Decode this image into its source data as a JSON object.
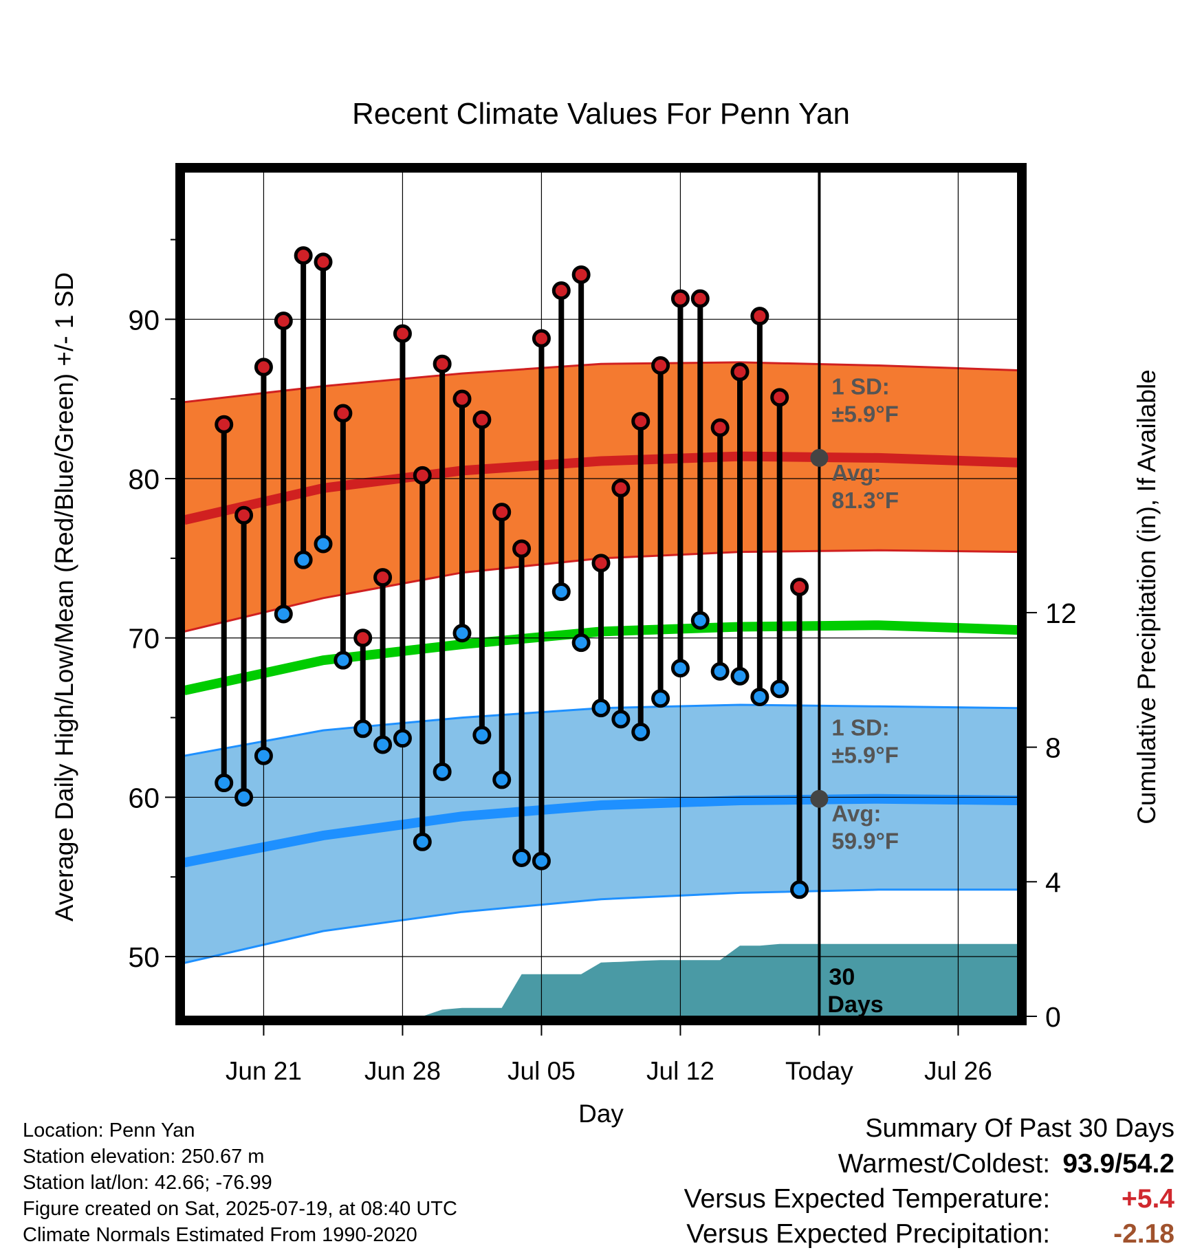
{
  "chart_data": {
    "type": "line",
    "title": "Recent Climate Values For Penn Yan",
    "xlabel": "Day",
    "ylabel": "Average Daily High/Low/Mean (Red/Blue/Green) +/- 1 SD",
    "y2label": "Cumulative Precipitation (in), If Available",
    "ylim": [
      46.25,
      99.25
    ],
    "y2lim": [
      0,
      25.1
    ],
    "yticks": [
      50,
      60,
      70,
      80,
      90
    ],
    "y2ticks": [
      0,
      4,
      8,
      12
    ],
    "xlim": [
      "2025-06-17",
      "2025-07-29"
    ],
    "xticks": [
      {
        "date": "2025-06-21",
        "label": "Jun 21"
      },
      {
        "date": "2025-06-28",
        "label": "Jun 28"
      },
      {
        "date": "2025-07-05",
        "label": "Jul 05"
      },
      {
        "date": "2025-07-12",
        "label": "Jul 12"
      },
      {
        "date": "2025-07-19",
        "label": "Today"
      },
      {
        "date": "2025-07-26",
        "label": "Jul 26"
      }
    ],
    "grid": true,
    "today": "2025-07-19",
    "days_label_line1": "30",
    "days_label_line2": "Days",
    "daily": {
      "dates": [
        "2025-06-19",
        "2025-06-20",
        "2025-06-21",
        "2025-06-22",
        "2025-06-23",
        "2025-06-24",
        "2025-06-25",
        "2025-06-26",
        "2025-06-27",
        "2025-06-28",
        "2025-06-29",
        "2025-06-30",
        "2025-07-01",
        "2025-07-02",
        "2025-07-03",
        "2025-07-04",
        "2025-07-05",
        "2025-07-06",
        "2025-07-07",
        "2025-07-08",
        "2025-07-09",
        "2025-07-10",
        "2025-07-11",
        "2025-07-12",
        "2025-07-13",
        "2025-07-14",
        "2025-07-15",
        "2025-07-16",
        "2025-07-17",
        "2025-07-18"
      ],
      "highs": [
        83.4,
        77.7,
        87.0,
        89.9,
        94.0,
        93.6,
        84.1,
        70.0,
        73.8,
        89.1,
        80.2,
        87.2,
        85.0,
        83.7,
        77.9,
        75.6,
        88.8,
        91.8,
        92.8,
        74.7,
        79.4,
        83.6,
        87.1,
        91.3,
        91.3,
        83.2,
        86.7,
        90.2,
        85.1,
        73.2
      ],
      "lows": [
        60.9,
        60.0,
        62.6,
        71.5,
        74.9,
        75.9,
        68.6,
        64.3,
        63.3,
        63.7,
        57.2,
        61.6,
        70.3,
        63.9,
        61.1,
        56.2,
        56.0,
        72.9,
        69.7,
        65.6,
        64.9,
        64.1,
        66.2,
        68.1,
        71.1,
        67.9,
        67.6,
        66.3,
        66.8,
        54.2
      ]
    },
    "normals": {
      "dates": [
        "2025-06-17",
        "2025-06-24",
        "2025-07-01",
        "2025-07-08",
        "2025-07-15",
        "2025-07-22",
        "2025-07-29"
      ],
      "high_avg": [
        77.4,
        79.4,
        80.5,
        81.1,
        81.4,
        81.3,
        81.0
      ],
      "high_upper": [
        84.8,
        85.8,
        86.6,
        87.2,
        87.3,
        87.1,
        86.8
      ],
      "high_lower": [
        70.4,
        72.5,
        74.1,
        75.0,
        75.4,
        75.5,
        75.4
      ],
      "mean_avg": [
        66.7,
        68.6,
        69.6,
        70.4,
        70.7,
        70.8,
        70.5
      ],
      "low_avg": [
        55.9,
        57.6,
        58.8,
        59.5,
        59.8,
        59.9,
        59.8
      ],
      "low_upper": [
        62.6,
        64.2,
        65.0,
        65.6,
        65.8,
        65.7,
        65.6
      ],
      "low_lower": [
        49.6,
        51.6,
        52.8,
        53.6,
        54.0,
        54.2,
        54.2
      ]
    },
    "precip": {
      "dates": [
        "2025-06-17",
        "2025-06-26",
        "2025-06-27",
        "2025-06-28",
        "2025-06-29",
        "2025-06-30",
        "2025-07-01",
        "2025-07-02",
        "2025-07-03",
        "2025-07-04",
        "2025-07-05",
        "2025-07-06",
        "2025-07-07",
        "2025-07-08",
        "2025-07-09",
        "2025-07-10",
        "2025-07-11",
        "2025-07-12",
        "2025-07-13",
        "2025-07-14",
        "2025-07-15",
        "2025-07-16",
        "2025-07-17",
        "2025-07-18",
        "2025-07-19",
        "2025-07-29"
      ],
      "values": [
        0.0,
        0.0,
        0.0,
        0.0,
        0.0,
        0.2,
        0.25,
        0.25,
        0.25,
        1.25,
        1.25,
        1.25,
        1.25,
        1.6,
        1.62,
        1.65,
        1.67,
        1.67,
        1.67,
        1.67,
        2.1,
        2.1,
        2.15,
        2.15,
        2.15,
        2.15
      ]
    },
    "annotations": [
      {
        "series": "high",
        "sd_label": "1 SD:",
        "sd_value": "±5.9°F",
        "avg_label": "Avg:",
        "avg_value": "81.3°F",
        "today_avg": 81.3
      },
      {
        "series": "low",
        "sd_label": "1 SD:",
        "sd_value": "±5.9°F",
        "avg_label": "Avg:",
        "avg_value": "59.9°F",
        "today_avg": 59.9
      }
    ],
    "colors": {
      "high_band": "#f47a30",
      "high_line": "#d02020",
      "high_dot": "#cf2027",
      "low_band": "#85c1e9",
      "low_line": "#1e90ff",
      "low_dot": "#2196f3",
      "mean_line": "#00cc00",
      "precip": "#4a9aa5",
      "annotation": "#555555",
      "today_marker": "#444444"
    }
  },
  "info": {
    "location": "Location: Penn Yan",
    "elevation": "Station elevation: 250.67 m",
    "latlon": "Station lat/lon: 42.66; -76.99",
    "created": "Figure created on Sat, 2025-07-19, at 08:40 UTC",
    "normals": "Climate Normals Estimated From 1990-2020"
  },
  "summary": {
    "title": "Summary Of Past 30 Days",
    "warm_cold_label": "Warmest/Coldest:",
    "warm_cold_value": "93.9/54.2",
    "temp_label": "Versus Expected Temperature:",
    "temp_value": "+5.4",
    "temp_color": "#d0282e",
    "precip_label": "Versus Expected Precipitation:",
    "precip_value": "-2.18",
    "precip_color": "#a0522d"
  }
}
